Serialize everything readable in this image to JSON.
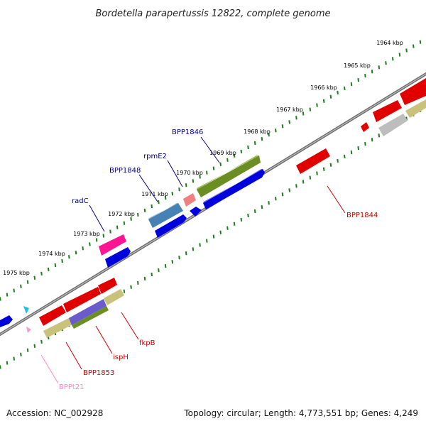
{
  "title": "Bordetella parapertussis 12822, complete genome",
  "footer": {
    "accession": "Accession: NC_002928",
    "topology": "Topology: circular; Length: 4,773,551 bp; Genes: 4,249"
  },
  "scale_labels": [
    "1964 kbp",
    "1965 kbp",
    "1966 kbp",
    "1967 kbp",
    "1968 kbp",
    "1969 kbp",
    "1970 kbp",
    "1971 kbp",
    "1972 kbp",
    "1973 kbp",
    "1974 kbp",
    "1975 kbp"
  ],
  "gene_labels": [
    {
      "text": "BPP1846",
      "color": "#00008b"
    },
    {
      "text": "rpmE2",
      "color": "#00008b"
    },
    {
      "text": "BPP1848",
      "color": "#00008b"
    },
    {
      "text": "radC",
      "color": "#00008b"
    },
    {
      "text": "BPP1844",
      "color": "#cc0000"
    },
    {
      "text": "fkpB",
      "color": "#cc0000"
    },
    {
      "text": "ispH",
      "color": "#cc0000"
    },
    {
      "text": "BPP1853",
      "color": "#cc0000"
    },
    {
      "text": "BPPt21",
      "color": "#ff88c8"
    }
  ],
  "colors": {
    "backbone": "#777777",
    "tick": "#1e7d1e",
    "feature_red": "#e00000",
    "feature_blue": "#0000dd",
    "feature_olive": "#6b8e23",
    "feature_khaki": "#c8c27a",
    "feature_pink": "#ff1493",
    "feature_steel": "#4682b4",
    "feature_purple": "#6a5acd",
    "feature_gray": "#bdbdbd",
    "feature_salmon": "#f08080",
    "feature_cyan": "#20c0e0",
    "feature_lightpink": "#f0a0d0"
  }
}
